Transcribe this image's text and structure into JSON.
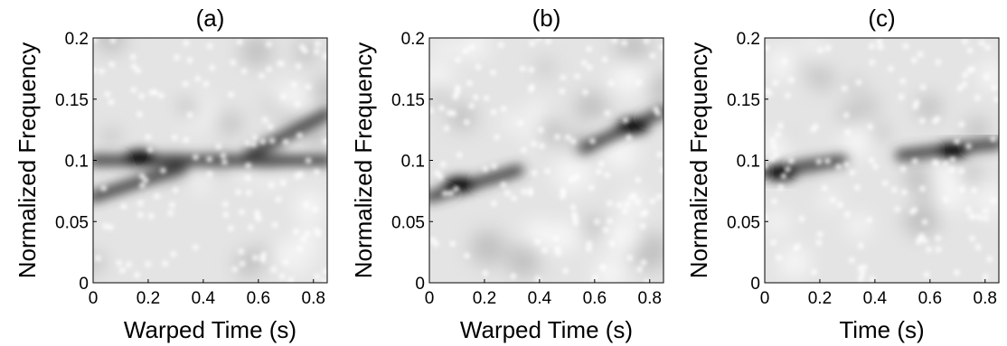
{
  "chart_data": [
    {
      "type": "image",
      "title": "(a)",
      "xlabel": "Warped Time (s)",
      "ylabel": "Normalized Frequency",
      "xlim": [
        0,
        0.85
      ],
      "ylim": [
        0,
        0.2
      ],
      "xticks": [
        0,
        0.2,
        0.4,
        0.6,
        0.8
      ],
      "yticks": [
        0,
        0.05,
        0.1,
        0.15,
        0.2
      ]
    },
    {
      "type": "image",
      "title": "(b)",
      "xlabel": "Warped Time (s)",
      "ylabel": "Normalized Frequency",
      "xlim": [
        0,
        0.85
      ],
      "ylim": [
        0,
        0.2
      ],
      "xticks": [
        0,
        0.2,
        0.4,
        0.6,
        0.8
      ],
      "yticks": [
        0,
        0.05,
        0.1,
        0.15,
        0.2
      ]
    },
    {
      "type": "image",
      "title": "(c)",
      "xlabel": "Time (s)",
      "ylabel": "Normalized Frequency",
      "xlim": [
        0,
        0.85
      ],
      "ylim": [
        0,
        0.2
      ],
      "xticks": [
        0,
        0.2,
        0.4,
        0.6,
        0.8
      ],
      "yticks": [
        0,
        0.05,
        0.1,
        0.15,
        0.2
      ]
    }
  ]
}
